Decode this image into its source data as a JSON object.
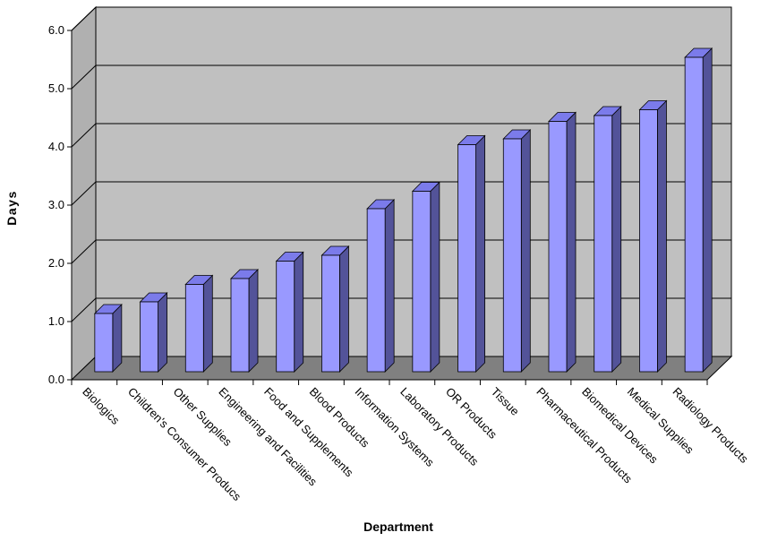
{
  "chart_data": {
    "type": "bar",
    "style": "3d-column",
    "title": "",
    "xlabel": "Department",
    "ylabel": "Days",
    "ylim": [
      0,
      6
    ],
    "yticks": [
      "0.0",
      "1.0",
      "2.0",
      "3.0",
      "4.0",
      "5.0",
      "6.0"
    ],
    "grid": true,
    "legend": "none",
    "categories": [
      "Biologics",
      "Children's Consumer Producs",
      "Other Supplies",
      "Engineering and Facilities",
      "Food and Supplements",
      "Blood Products",
      "Information Systems",
      "Laboratory Products",
      "OR Products",
      "Tissue",
      "Pharmaceutical Products",
      "Biomedical Devices",
      "Medical Supplies",
      "Radiology Products"
    ],
    "values": [
      1.0,
      1.2,
      1.5,
      1.6,
      1.9,
      2.0,
      2.8,
      3.1,
      3.9,
      4.0,
      4.3,
      4.4,
      4.5,
      5.4
    ],
    "colors": {
      "bar_front": "#9999ff",
      "bar_top": "#7b7bea",
      "bar_side": "#535399",
      "wall": "#c0c0c0",
      "floor": "#808080"
    }
  }
}
